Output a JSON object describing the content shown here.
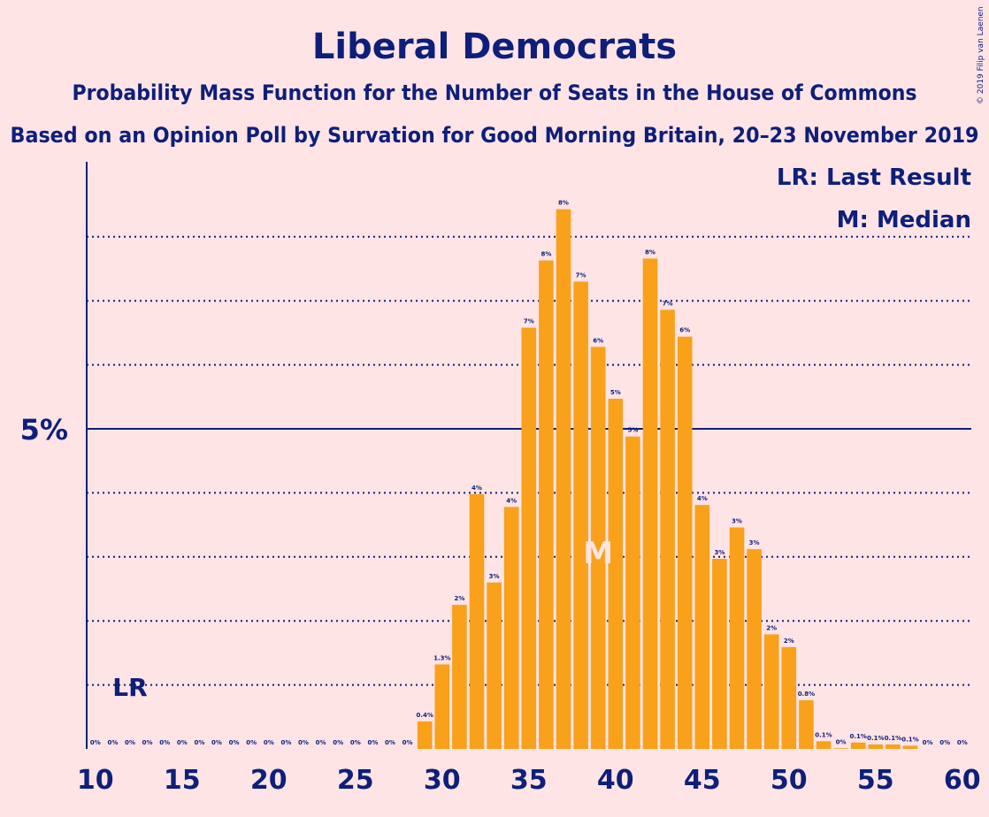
{
  "chart_data": {
    "type": "bar",
    "title": "Liberal Democrats",
    "subtitle": "Probability Mass Function for the Number of Seats in the House of Commons",
    "subtitle2": "Based on an Opinion Poll by Survation for Good Morning Britain, 20–23 November 2019",
    "copyright": "© 2019 Filip van Laenen",
    "legend": {
      "lr": "LR: Last Result",
      "m": "M: Median",
      "placement": "top-right"
    },
    "x_ticks": [
      10,
      15,
      20,
      25,
      30,
      35,
      40,
      45,
      50,
      55,
      60
    ],
    "xlim": [
      10,
      60
    ],
    "ylim": [
      0,
      9
    ],
    "y_major": {
      "value": 5,
      "label": "5%"
    },
    "y_gridlines": [
      1,
      2,
      3,
      4,
      6,
      7,
      8
    ],
    "last_result": {
      "seat": 12,
      "label": "LR"
    },
    "median": {
      "seat": 39,
      "label": "M"
    },
    "bar_color": "#f9a11b",
    "bars": [
      {
        "seat": 10,
        "value": 0,
        "label": "0%"
      },
      {
        "seat": 11,
        "value": 0,
        "label": "0%"
      },
      {
        "seat": 12,
        "value": 0,
        "label": "0%"
      },
      {
        "seat": 13,
        "value": 0,
        "label": "0%"
      },
      {
        "seat": 14,
        "value": 0,
        "label": "0%"
      },
      {
        "seat": 15,
        "value": 0,
        "label": "0%"
      },
      {
        "seat": 16,
        "value": 0,
        "label": "0%"
      },
      {
        "seat": 17,
        "value": 0,
        "label": "0%"
      },
      {
        "seat": 18,
        "value": 0,
        "label": "0%"
      },
      {
        "seat": 19,
        "value": 0,
        "label": "0%"
      },
      {
        "seat": 20,
        "value": 0,
        "label": "0%"
      },
      {
        "seat": 21,
        "value": 0,
        "label": "0%"
      },
      {
        "seat": 22,
        "value": 0,
        "label": "0%"
      },
      {
        "seat": 23,
        "value": 0,
        "label": "0%"
      },
      {
        "seat": 24,
        "value": 0,
        "label": "0%"
      },
      {
        "seat": 25,
        "value": 0,
        "label": "0%"
      },
      {
        "seat": 26,
        "value": 0,
        "label": "0%"
      },
      {
        "seat": 27,
        "value": 0,
        "label": "0%"
      },
      {
        "seat": 28,
        "value": 0,
        "label": "0%"
      },
      {
        "seat": 29,
        "value": 0.43,
        "label": "0.4%"
      },
      {
        "seat": 30,
        "value": 1.32,
        "label": "1.3%"
      },
      {
        "seat": 31,
        "value": 2.25,
        "label": "2%"
      },
      {
        "seat": 32,
        "value": 3.98,
        "label": "4%"
      },
      {
        "seat": 33,
        "value": 2.6,
        "label": "3%"
      },
      {
        "seat": 34,
        "value": 3.78,
        "label": "4%"
      },
      {
        "seat": 35,
        "value": 6.58,
        "label": "7%"
      },
      {
        "seat": 36,
        "value": 7.63,
        "label": "8%"
      },
      {
        "seat": 37,
        "value": 8.43,
        "label": "8%"
      },
      {
        "seat": 38,
        "value": 7.3,
        "label": "7%"
      },
      {
        "seat": 39,
        "value": 6.28,
        "label": "6%"
      },
      {
        "seat": 40,
        "value": 5.47,
        "label": "5%"
      },
      {
        "seat": 41,
        "value": 4.88,
        "label": "5%"
      },
      {
        "seat": 42,
        "value": 7.66,
        "label": "8%"
      },
      {
        "seat": 43,
        "value": 6.86,
        "label": "7%"
      },
      {
        "seat": 44,
        "value": 6.44,
        "label": "6%"
      },
      {
        "seat": 45,
        "value": 3.81,
        "label": "4%"
      },
      {
        "seat": 46,
        "value": 2.97,
        "label": "3%"
      },
      {
        "seat": 47,
        "value": 3.46,
        "label": "3%"
      },
      {
        "seat": 48,
        "value": 3.12,
        "label": "3%"
      },
      {
        "seat": 49,
        "value": 1.79,
        "label": "2%"
      },
      {
        "seat": 50,
        "value": 1.59,
        "label": "2%"
      },
      {
        "seat": 51,
        "value": 0.76,
        "label": "0.8%"
      },
      {
        "seat": 52,
        "value": 0.12,
        "label": "0.1%"
      },
      {
        "seat": 53,
        "value": 0.01,
        "label": "0%"
      },
      {
        "seat": 54,
        "value": 0.1,
        "label": "0.1%"
      },
      {
        "seat": 55,
        "value": 0.07,
        "label": "0.1%"
      },
      {
        "seat": 56,
        "value": 0.07,
        "label": "0.1%"
      },
      {
        "seat": 57,
        "value": 0.05,
        "label": "0.1%"
      },
      {
        "seat": 58,
        "value": 0,
        "label": "0%"
      },
      {
        "seat": 59,
        "value": 0,
        "label": "0%"
      },
      {
        "seat": 60,
        "value": 0,
        "label": "0%"
      }
    ]
  }
}
